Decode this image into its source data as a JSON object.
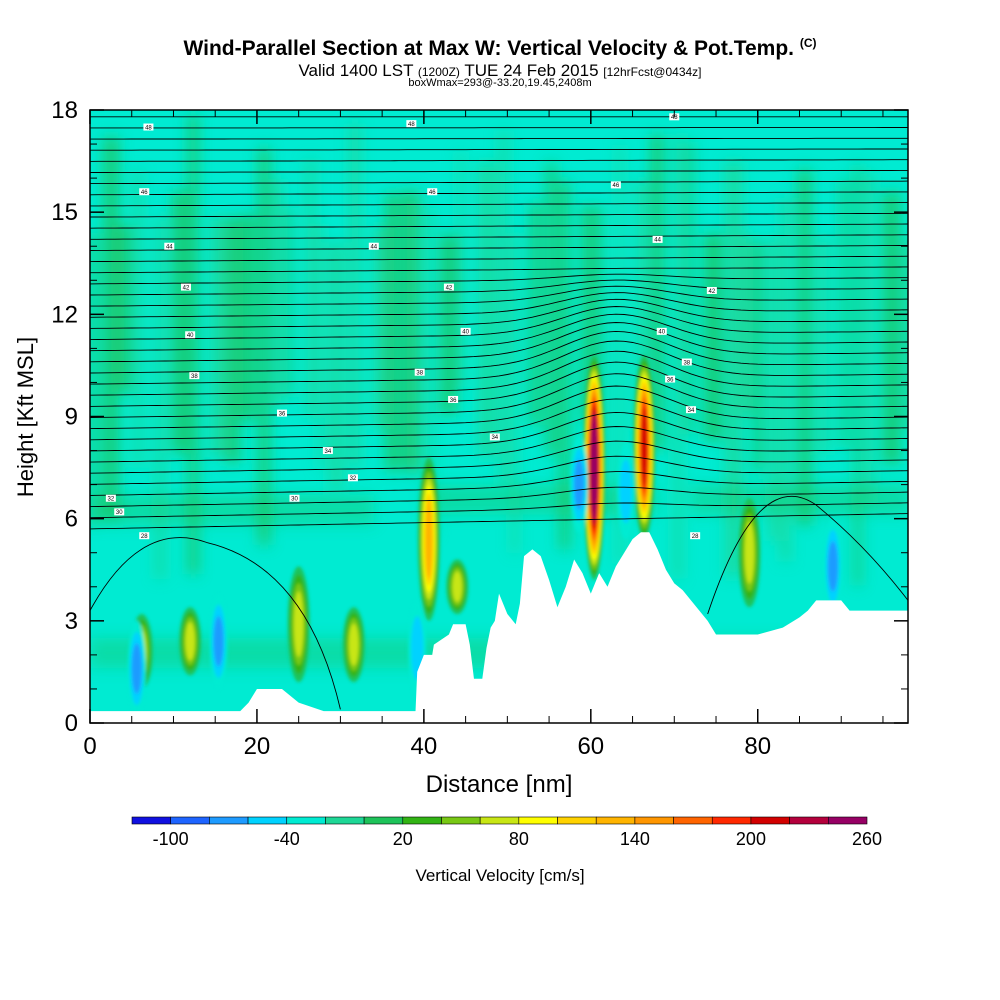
{
  "header": {
    "title_main": "Wind-Parallel Section at Max W: Vertical Velocity & Pot.Temp.",
    "title_copyright": "(C)",
    "subtitle_valid": "Valid 1400 LST",
    "subtitle_utc": "(1200Z)",
    "subtitle_date": "TUE 24 Feb 2015",
    "subtitle_fcst": "[12hrFcst@0434z]",
    "subtitle_box": "boxWmax=293@-33.20,19.45,2408m"
  },
  "chart_data": {
    "type": "heatmap",
    "xlabel": "Distance [nm]",
    "ylabel": "Height [Kft MSL]",
    "xlim": [
      0,
      98
    ],
    "ylim": [
      0,
      18
    ],
    "x_ticks": [
      0,
      20,
      40,
      60,
      80
    ],
    "y_ticks": [
      0,
      3,
      6,
      9,
      12,
      15,
      18
    ],
    "grid": false,
    "colorbar": {
      "label": "Vertical Velocity [cm/s]",
      "placement": "bottom",
      "tick_labels": [
        "-100",
        "-40",
        "20",
        "80",
        "140",
        "200",
        "260"
      ],
      "colors": [
        "#1010e0",
        "#1e64ff",
        "#1e9bff",
        "#00d2ff",
        "#00ebd2",
        "#1ed796",
        "#1ec35a",
        "#32b414",
        "#78c814",
        "#c8e614",
        "#ffff00",
        "#ffd200",
        "#ffb400",
        "#ff9600",
        "#ff6400",
        "#ff2800",
        "#d20000",
        "#b4003c",
        "#960064"
      ]
    },
    "background_value_color": "#00ebd2",
    "updraft_cores": [
      {
        "x": 40.6,
        "ybase": 3.0,
        "ytop": 7.8,
        "peak_cm_s": 150
      },
      {
        "x": 60.4,
        "ybase": 4.2,
        "ytop": 10.8,
        "peak_cm_s": 293
      },
      {
        "x": 66.4,
        "ybase": 5.4,
        "ytop": 10.8,
        "peak_cm_s": 220
      },
      {
        "x": 44.0,
        "ybase": 3.2,
        "ytop": 4.8,
        "peak_cm_s": 90
      },
      {
        "x": 6.2,
        "ybase": 1.0,
        "ytop": 3.2,
        "peak_cm_s": 80
      },
      {
        "x": 12.0,
        "ybase": 1.4,
        "ytop": 3.4,
        "peak_cm_s": 80
      },
      {
        "x": 25.0,
        "ybase": 1.2,
        "ytop": 4.6,
        "peak_cm_s": 90
      },
      {
        "x": 31.6,
        "ybase": 1.2,
        "ytop": 3.4,
        "peak_cm_s": 80
      },
      {
        "x": 79.0,
        "ybase": 3.4,
        "ytop": 6.6,
        "peak_cm_s": 90
      }
    ],
    "downdraft_cores": [
      {
        "x": 5.6,
        "y": 1.6,
        "min_cm_s": -60
      },
      {
        "x": 15.4,
        "y": 2.4,
        "min_cm_s": -60
      },
      {
        "x": 39.2,
        "y": 2.2,
        "min_cm_s": -50
      },
      {
        "x": 58.6,
        "y": 7.0,
        "min_cm_s": -60
      },
      {
        "x": 64.2,
        "y": 6.8,
        "min_cm_s": -50
      },
      {
        "x": 89.0,
        "y": 4.6,
        "min_cm_s": -60
      }
    ],
    "terrain_profile_kft": [
      [
        0,
        0.35
      ],
      [
        18,
        0.35
      ],
      [
        19,
        0.6
      ],
      [
        20,
        1.0
      ],
      [
        22,
        1.0
      ],
      [
        23,
        1.0
      ],
      [
        25,
        0.6
      ],
      [
        28,
        0.35
      ],
      [
        38,
        0.35
      ],
      [
        39,
        0.35
      ],
      [
        39.2,
        1.5
      ],
      [
        40,
        2.0
      ],
      [
        41,
        2.0
      ],
      [
        41.2,
        2.3
      ],
      [
        43,
        2.6
      ],
      [
        43.5,
        2.9
      ],
      [
        45,
        2.9
      ],
      [
        45.5,
        2.3
      ],
      [
        46,
        1.3
      ],
      [
        47,
        1.3
      ],
      [
        47.5,
        2.2
      ],
      [
        48,
        2.8
      ],
      [
        48.5,
        3.0
      ],
      [
        49,
        3.8
      ],
      [
        50,
        3.2
      ],
      [
        51,
        2.9
      ],
      [
        51.5,
        3.5
      ],
      [
        52,
        4.9
      ],
      [
        53,
        5.1
      ],
      [
        54,
        4.9
      ],
      [
        55,
        4.2
      ],
      [
        56,
        3.4
      ],
      [
        57,
        4.0
      ],
      [
        58,
        4.8
      ],
      [
        59,
        4.4
      ],
      [
        60,
        3.8
      ],
      [
        61,
        4.4
      ],
      [
        62,
        4.0
      ],
      [
        63,
        4.6
      ],
      [
        64,
        5.0
      ],
      [
        65,
        5.4
      ],
      [
        66,
        5.6
      ],
      [
        67,
        5.6
      ],
      [
        68,
        5.1
      ],
      [
        69,
        4.5
      ],
      [
        70,
        4.1
      ],
      [
        71,
        3.9
      ],
      [
        72,
        3.6
      ],
      [
        73,
        3.3
      ],
      [
        74,
        3.0
      ],
      [
        75,
        2.6
      ],
      [
        80,
        2.6
      ],
      [
        83,
        2.8
      ],
      [
        85,
        3.1
      ],
      [
        86,
        3.3
      ],
      [
        87,
        3.6
      ],
      [
        90,
        3.6
      ],
      [
        91,
        3.3
      ],
      [
        98,
        3.3
      ]
    ],
    "theta_isentropes": {
      "count": 38,
      "ybase_left_kft": 5.7,
      "ytop_kft": 17.8,
      "ridge_x_nm": 63,
      "labels": [
        {
          "x": 7,
          "y": 17.5,
          "text": "48"
        },
        {
          "x": 38.5,
          "y": 17.6,
          "text": "48"
        },
        {
          "x": 70,
          "y": 17.8,
          "text": "48"
        },
        {
          "x": 6.5,
          "y": 15.6,
          "text": "46"
        },
        {
          "x": 41,
          "y": 15.6,
          "text": "46"
        },
        {
          "x": 63,
          "y": 15.8,
          "text": "46"
        },
        {
          "x": 9.5,
          "y": 14.0,
          "text": "44"
        },
        {
          "x": 34,
          "y": 14.0,
          "text": "44"
        },
        {
          "x": 68,
          "y": 14.2,
          "text": "44"
        },
        {
          "x": 11.5,
          "y": 12.8,
          "text": "42"
        },
        {
          "x": 43,
          "y": 12.8,
          "text": "42"
        },
        {
          "x": 74.5,
          "y": 12.7,
          "text": "42"
        },
        {
          "x": 12,
          "y": 11.4,
          "text": "40"
        },
        {
          "x": 45,
          "y": 11.5,
          "text": "40"
        },
        {
          "x": 68.5,
          "y": 11.5,
          "text": "40"
        },
        {
          "x": 12.5,
          "y": 10.2,
          "text": "38"
        },
        {
          "x": 39.5,
          "y": 10.3,
          "text": "38"
        },
        {
          "x": 71.5,
          "y": 10.6,
          "text": "38"
        },
        {
          "x": 23,
          "y": 9.1,
          "text": "36"
        },
        {
          "x": 43.5,
          "y": 9.5,
          "text": "36"
        },
        {
          "x": 69.5,
          "y": 10.1,
          "text": "36"
        },
        {
          "x": 28.5,
          "y": 8.0,
          "text": "34"
        },
        {
          "x": 48.5,
          "y": 8.4,
          "text": "34"
        },
        {
          "x": 72,
          "y": 9.2,
          "text": "34"
        },
        {
          "x": 31.5,
          "y": 7.2,
          "text": "32"
        },
        {
          "x": 2.5,
          "y": 6.6,
          "text": "32"
        },
        {
          "x": 3.5,
          "y": 6.2,
          "text": "30"
        },
        {
          "x": 24.5,
          "y": 6.6,
          "text": "30"
        },
        {
          "x": 6.5,
          "y": 5.5,
          "text": "28"
        },
        {
          "x": 72.5,
          "y": 5.5,
          "text": "28"
        }
      ]
    }
  }
}
